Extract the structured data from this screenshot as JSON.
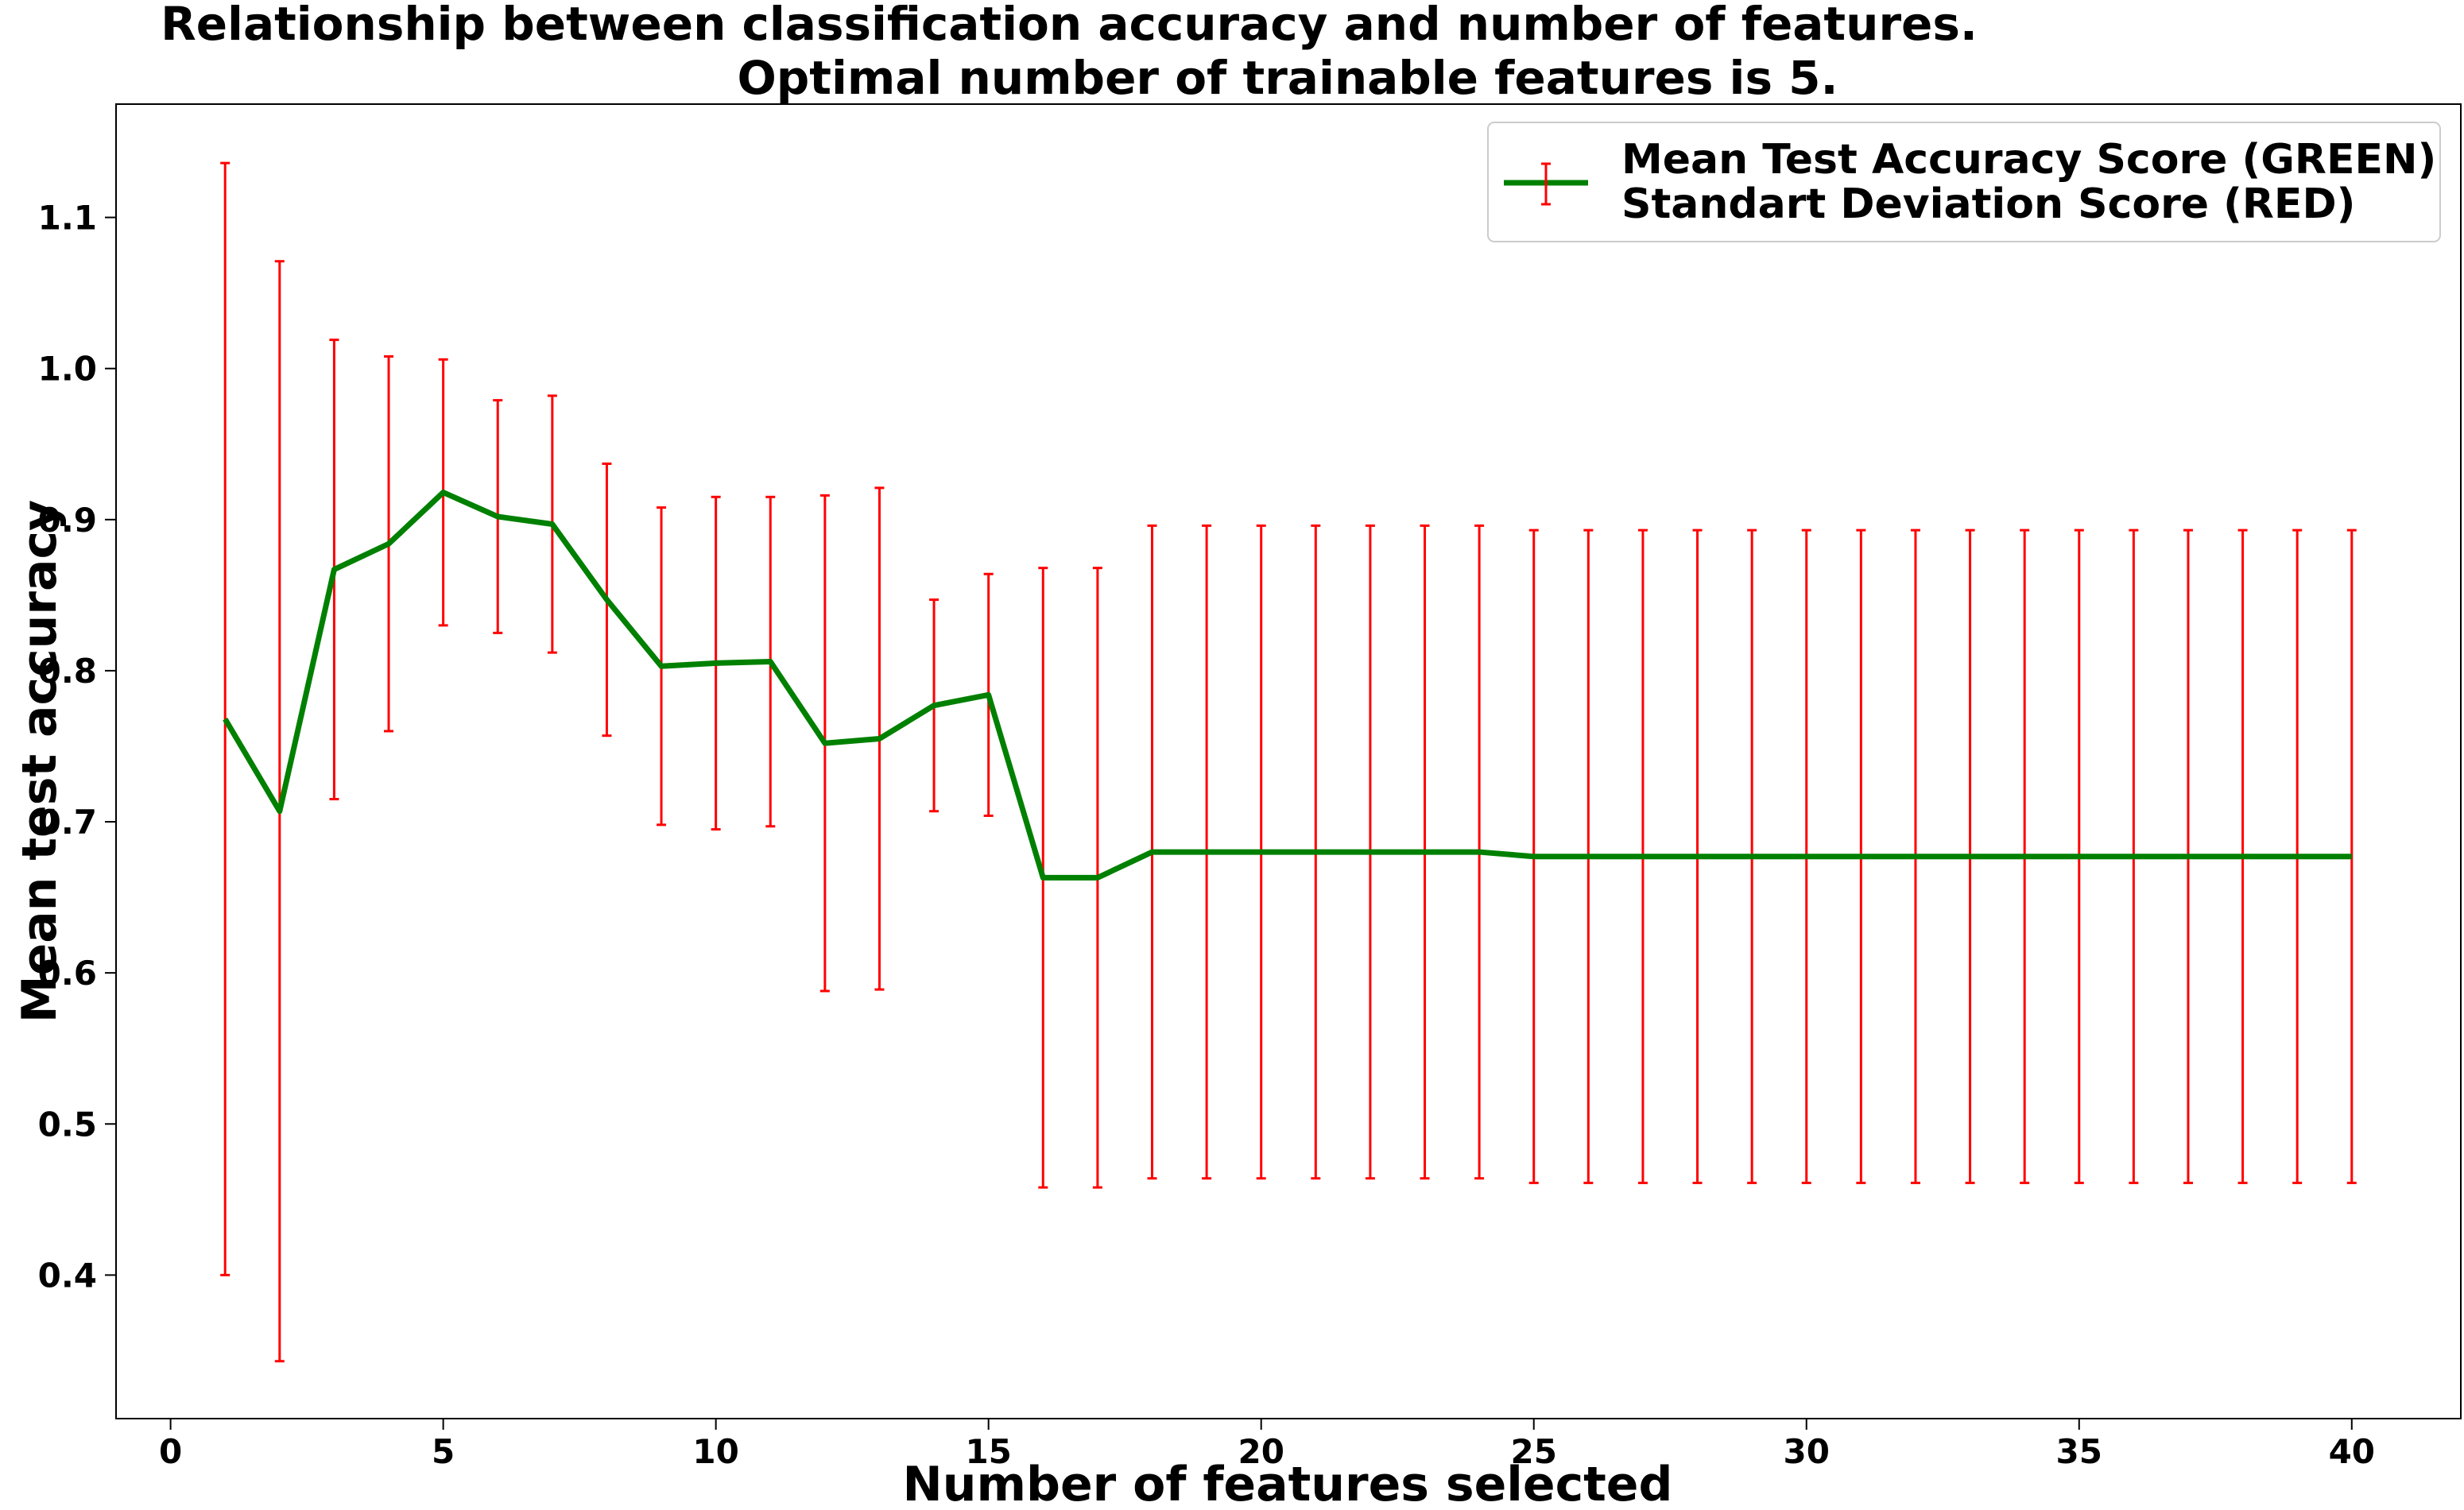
{
  "chart_data": {
    "type": "line",
    "title_line1": "Relationship between classification accuracy and number of features.",
    "title_line2": "Optimal number of trainable features is 5.",
    "xlabel": "Number of features selected",
    "ylabel": "Mean test accuracy",
    "xlim": [
      -1,
      42
    ],
    "ylim": [
      0.305,
      1.175
    ],
    "xticks": [
      0,
      5,
      10,
      15,
      20,
      25,
      30,
      35,
      40
    ],
    "yticks": [
      0.4,
      0.5,
      0.6,
      0.7,
      0.8,
      0.9,
      1.0,
      1.1
    ],
    "grid": false,
    "legend_placement": "top-right",
    "legend": {
      "mean_label": "Mean Test Accuracy Score (GREEN)",
      "std_label": "Standart Deviation Score (RED)"
    },
    "colors": {
      "mean": "#008000",
      "std": "#ff0000"
    },
    "x": [
      1,
      2,
      3,
      4,
      5,
      6,
      7,
      8,
      9,
      10,
      11,
      12,
      13,
      14,
      15,
      16,
      17,
      18,
      19,
      20,
      21,
      22,
      23,
      24,
      25,
      26,
      27,
      28,
      29,
      30,
      31,
      32,
      33,
      34,
      35,
      36,
      37,
      38,
      39,
      40
    ],
    "series": [
      {
        "kind": "mean",
        "values": [
          0.768,
          0.707,
          0.867,
          0.884,
          0.918,
          0.902,
          0.897,
          0.847,
          0.803,
          0.805,
          0.806,
          0.752,
          0.755,
          0.777,
          0.784,
          0.663,
          0.663,
          0.68,
          0.68,
          0.68,
          0.68,
          0.68,
          0.68,
          0.68,
          0.677,
          0.677,
          0.677,
          0.677,
          0.677,
          0.677,
          0.677,
          0.677,
          0.677,
          0.677,
          0.677,
          0.677,
          0.677,
          0.677,
          0.677,
          0.677
        ]
      },
      {
        "kind": "std",
        "values": [
          0.368,
          0.364,
          0.152,
          0.124,
          0.088,
          0.077,
          0.085,
          0.09,
          0.105,
          0.11,
          0.109,
          0.164,
          0.166,
          0.07,
          0.08,
          0.205,
          0.205,
          0.216,
          0.216,
          0.216,
          0.216,
          0.216,
          0.216,
          0.216,
          0.216,
          0.216,
          0.216,
          0.216,
          0.216,
          0.216,
          0.216,
          0.216,
          0.216,
          0.216,
          0.216,
          0.216,
          0.216,
          0.216,
          0.216,
          0.216
        ]
      }
    ]
  }
}
